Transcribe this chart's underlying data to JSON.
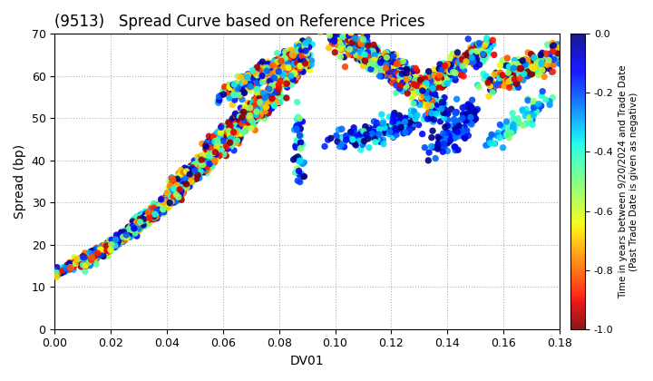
{
  "title": "(9513)   Spread Curve based on Reference Prices",
  "xlabel": "DV01",
  "ylabel": "Spread (bp)",
  "xlim": [
    0.0,
    0.18
  ],
  "ylim": [
    0,
    70
  ],
  "xticks": [
    0.0,
    0.02,
    0.04,
    0.06,
    0.08,
    0.1,
    0.12,
    0.14,
    0.16,
    0.18
  ],
  "yticks": [
    0,
    10,
    20,
    30,
    40,
    50,
    60,
    70
  ],
  "cmap": "jet_r",
  "clim": [
    -1.0,
    0.0
  ],
  "colorbar_ticks": [
    0.0,
    -0.2,
    -0.4,
    -0.6,
    -0.8,
    -1.0
  ],
  "colorbar_label": "Time in years between 9/20/2024 and Trade Date\n(Past Trade Date is given as negative)",
  "marker_size": 28,
  "background_color": "#ffffff",
  "grid_color": "#b0b0b0",
  "title_fontsize": 12,
  "axis_fontsize": 10
}
